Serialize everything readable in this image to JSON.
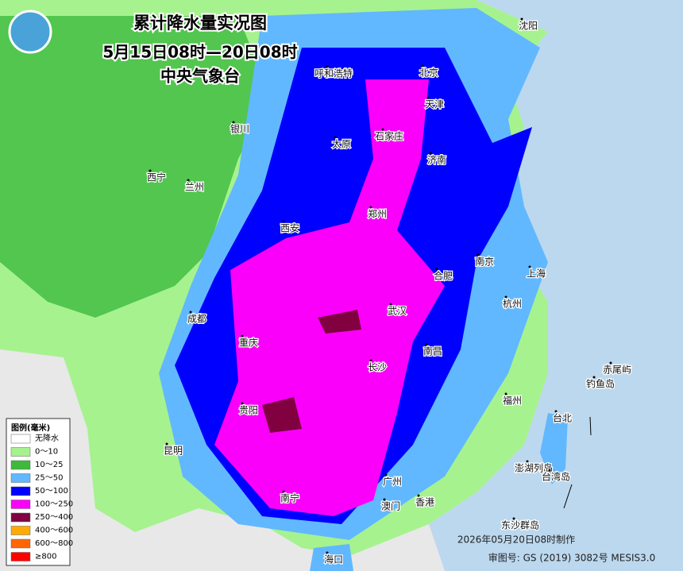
{
  "header": {
    "title": "累计降水量实况图",
    "period": "5月15日08时—20日08时",
    "agency": "中央气象台"
  },
  "legend": {
    "title": "图例(毫米)",
    "items": [
      {
        "label": "无降水",
        "color": "#ffffff"
      },
      {
        "label": "0～10",
        "color": "#a6f28f"
      },
      {
        "label": "10～25",
        "color": "#3dba3d"
      },
      {
        "label": "25～50",
        "color": "#61b8ff"
      },
      {
        "label": "50～100",
        "color": "#0000fe"
      },
      {
        "label": "100～250",
        "color": "#fa00fa"
      },
      {
        "label": "250～400",
        "color": "#800040"
      },
      {
        "label": "400～600",
        "color": "#ffaa00"
      },
      {
        "label": "600～800",
        "color": "#ff6600"
      },
      {
        "label": "≥800",
        "color": "#ff0000"
      }
    ]
  },
  "cities": [
    "沈阳",
    "呼和浩特",
    "北京",
    "天津",
    "银川",
    "太原",
    "石家庄",
    "济南",
    "西宁",
    "兰州",
    "郑州",
    "西安",
    "南京",
    "合肥",
    "上海",
    "成都",
    "武汉",
    "杭州",
    "重庆",
    "南昌",
    "长沙",
    "赤尾屿",
    "钓鱼岛",
    "福州",
    "贵阳",
    "台北",
    "昆明",
    "澎湖列岛",
    "台湾岛",
    "广州",
    "南宁",
    "澳门",
    "香港",
    "东沙群岛",
    "海口"
  ],
  "footer": {
    "made": "2026年05月20日08时制作",
    "review": "审图号: GS (2019) 3082号 MESIS3.0"
  }
}
